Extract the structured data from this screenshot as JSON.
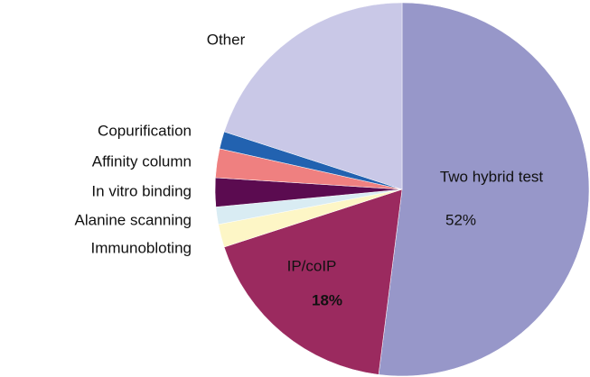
{
  "chart_data": {
    "type": "pie",
    "categories": [
      "Two hybrid test",
      "IP/coIP",
      "Immunobloting",
      "Alanine scanning",
      "In vitro binding",
      "Affinity column",
      "Copurification",
      "Other"
    ],
    "values": [
      52,
      18,
      2,
      1.5,
      2.5,
      2.5,
      1.5,
      20
    ],
    "value_labels": [
      "52%",
      "18%",
      null,
      null,
      null,
      null,
      null,
      null
    ],
    "colors": [
      "#9797c9",
      "#9b2a5f",
      "#fdf6c6",
      "#d9ecf3",
      "#5b0b50",
      "#ef8080",
      "#2262b0",
      "#c9c8e7"
    ]
  }
}
